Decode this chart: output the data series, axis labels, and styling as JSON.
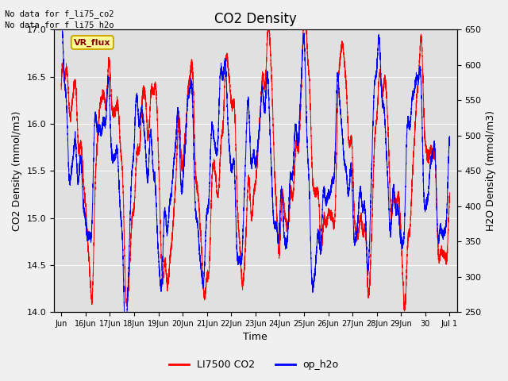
{
  "title": "CO2 Density",
  "xlabel": "Time",
  "ylabel_left": "CO2 Density (mmol/m3)",
  "ylabel_right": "H2O Density (mmol/m3)",
  "ylim_left": [
    14.0,
    17.0
  ],
  "ylim_right": [
    250,
    650
  ],
  "yticks_left": [
    14.0,
    14.5,
    15.0,
    15.5,
    16.0,
    16.5,
    17.0
  ],
  "yticks_right": [
    250,
    300,
    350,
    400,
    450,
    500,
    550,
    600,
    650
  ],
  "note1": "No data for f_li75_co2",
  "note2": "No data for f_li75_h2o",
  "vr_label": "VR_flux",
  "legend_co2": "LI7500 CO2",
  "legend_h2o": "op_h2o",
  "color_co2": "#FF0000",
  "color_h2o": "#0000FF",
  "fig_bg_color": "#F0F0F0",
  "plot_bg_color": "#E0E0E0",
  "vr_box_facecolor": "#FFFF99",
  "vr_box_edgecolor": "#CCAA00",
  "xtick_labels": [
    "Jun",
    "16Jun",
    "17Jun",
    "18Jun",
    "19Jun",
    "20Jun",
    "21Jun",
    "22Jun",
    "23Jun",
    "24Jun",
    "25Jun",
    "26Jun",
    "27Jun",
    "28Jun",
    "29Jun",
    "30",
    "Jul 1"
  ],
  "xtick_positions": [
    0,
    1,
    2,
    3,
    4,
    5,
    6,
    7,
    8,
    9,
    10,
    11,
    12,
    13,
    14,
    15,
    16
  ]
}
